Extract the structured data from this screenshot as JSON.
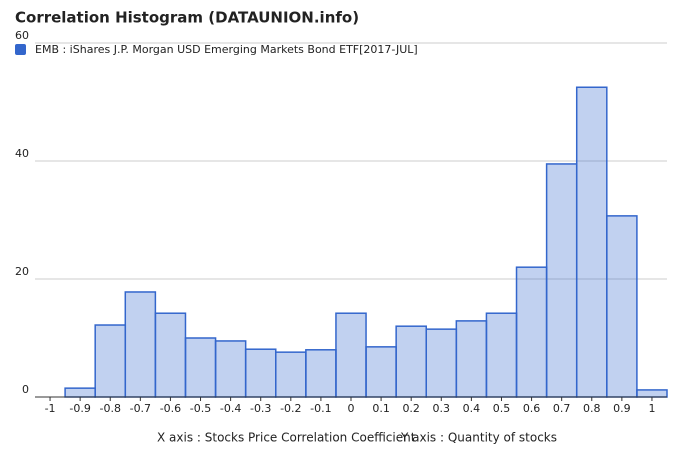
{
  "chart_data": {
    "type": "histogram",
    "title": "Correlation Histogram (DATAUNION.info)",
    "x_label": "X axis : Stocks Price Correlation Coefficient",
    "y_label": "Y axis : Quantity of stocks",
    "bins": [
      -1.05,
      -0.95,
      -0.85,
      -0.75,
      -0.65,
      -0.55,
      -0.45,
      -0.35,
      -0.25,
      -0.15,
      -0.05,
      0.05,
      0.15,
      0.25,
      0.35,
      0.45,
      0.55,
      0.65,
      0.75,
      0.85,
      0.95,
      1.05
    ],
    "series": [
      {
        "name": "EMB : iShares J.P. Morgan USD Emerging Markets Bond ETF[2017-JUL]",
        "color": "#3366cc",
        "values": [
          0,
          1.5,
          12.2,
          17.8,
          14.2,
          10,
          9.5,
          8.1,
          7.6,
          8,
          14.2,
          8.5,
          12,
          11.5,
          12.9,
          14.2,
          22,
          39.5,
          52.5,
          30.7,
          1.2
        ]
      }
    ],
    "xlim": [
      -1.05,
      1.05
    ],
    "xticks": [
      -1,
      -0.9,
      -0.8,
      -0.7,
      -0.6,
      -0.5,
      -0.4,
      -0.3,
      -0.2,
      -0.1,
      0,
      0.1,
      0.2,
      0.3,
      0.4,
      0.5,
      0.6,
      0.7,
      0.8,
      0.9,
      1
    ],
    "ylim": [
      0,
      60
    ],
    "yticks": [
      0,
      20,
      40,
      60
    ],
    "grid": true
  }
}
